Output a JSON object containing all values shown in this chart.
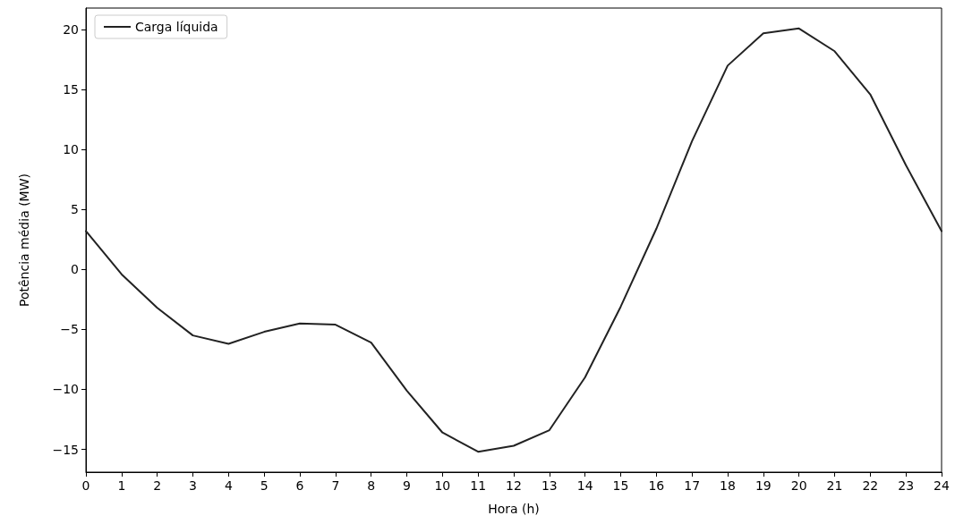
{
  "chart_data": {
    "type": "line",
    "xlabel": "Hora (h)",
    "ylabel": "Potência média (MW)",
    "x": [
      0,
      1,
      2,
      3,
      4,
      5,
      6,
      7,
      8,
      9,
      10,
      11,
      12,
      13,
      14,
      15,
      16,
      17,
      18,
      19,
      20,
      21,
      22,
      23,
      24
    ],
    "series": [
      {
        "name": "Carga líquida",
        "color": "#222222",
        "values": [
          3.2,
          -0.4,
          -3.2,
          -5.5,
          -6.2,
          -5.2,
          -4.5,
          -4.6,
          -6.1,
          -10.1,
          -13.6,
          -15.2,
          -14.7,
          -13.4,
          -9.0,
          -3.1,
          3.4,
          10.7,
          17.0,
          19.7,
          20.1,
          18.2,
          14.6,
          8.7,
          3.2
        ]
      }
    ],
    "xlim": [
      0,
      24
    ],
    "xticks": [
      0,
      1,
      2,
      3,
      4,
      5,
      6,
      7,
      8,
      9,
      10,
      11,
      12,
      13,
      14,
      15,
      16,
      17,
      18,
      19,
      20,
      21,
      22,
      23,
      24
    ],
    "ylim": [
      -16.9,
      21.8
    ],
    "yticks": [
      -15,
      -10,
      -5,
      0,
      5,
      10,
      15,
      20
    ],
    "grid": false,
    "legend": "top left",
    "marker": "none",
    "line_style": "solid"
  }
}
